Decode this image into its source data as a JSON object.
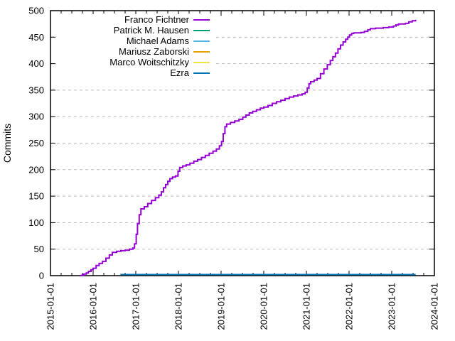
{
  "chart_data": {
    "type": "line",
    "title": "",
    "ylabel": "Commits",
    "x_axis": {
      "tick_labels": [
        "2015-01-01",
        "2016-01-01",
        "2017-01-01",
        "2018-01-01",
        "2019-01-01",
        "2020-01-01",
        "2021-01-01",
        "2022-01-01",
        "2023-01-01",
        "2024-01-01"
      ],
      "range_decimal_years": [
        2015,
        2024
      ],
      "minor_ticks_per_interval": 3,
      "tick_label_rotation_deg": 90
    },
    "y_axis": {
      "label": "Commits",
      "ticks": [
        0,
        50,
        100,
        150,
        200,
        250,
        300,
        350,
        400,
        450,
        500
      ],
      "range": [
        0,
        500
      ],
      "grid": "horizontal-dashed"
    },
    "legend_position": "top-left-inside",
    "x_unit": "decimal_year",
    "series": [
      {
        "name": "Franco Fichtner",
        "color": "#9400d3",
        "points": [
          [
            2015.7,
            0
          ],
          [
            2015.74,
            1
          ],
          [
            2015.78,
            3
          ],
          [
            2015.84,
            5
          ],
          [
            2015.89,
            8
          ],
          [
            2015.95,
            11
          ],
          [
            2016.0,
            14
          ],
          [
            2016.07,
            19
          ],
          [
            2016.14,
            23
          ],
          [
            2016.22,
            27
          ],
          [
            2016.3,
            33
          ],
          [
            2016.38,
            39
          ],
          [
            2016.45,
            44
          ],
          [
            2016.55,
            46
          ],
          [
            2016.65,
            47
          ],
          [
            2016.75,
            48
          ],
          [
            2016.85,
            50
          ],
          [
            2016.93,
            52
          ],
          [
            2016.97,
            60
          ],
          [
            2017.01,
            78
          ],
          [
            2017.04,
            98
          ],
          [
            2017.08,
            115
          ],
          [
            2017.12,
            126
          ],
          [
            2017.2,
            130
          ],
          [
            2017.28,
            136
          ],
          [
            2017.37,
            142
          ],
          [
            2017.46,
            147
          ],
          [
            2017.54,
            152
          ],
          [
            2017.6,
            158
          ],
          [
            2017.65,
            166
          ],
          [
            2017.7,
            172
          ],
          [
            2017.75,
            178
          ],
          [
            2017.8,
            183
          ],
          [
            2017.86,
            186
          ],
          [
            2017.93,
            188
          ],
          [
            2017.99,
            197
          ],
          [
            2018.03,
            204
          ],
          [
            2018.1,
            207
          ],
          [
            2018.18,
            209
          ],
          [
            2018.27,
            212
          ],
          [
            2018.36,
            216
          ],
          [
            2018.45,
            219
          ],
          [
            2018.54,
            223
          ],
          [
            2018.63,
            227
          ],
          [
            2018.72,
            231
          ],
          [
            2018.81,
            235
          ],
          [
            2018.89,
            239
          ],
          [
            2018.96,
            245
          ],
          [
            2019.01,
            253
          ],
          [
            2019.05,
            268
          ],
          [
            2019.09,
            281
          ],
          [
            2019.13,
            286
          ],
          [
            2019.22,
            289
          ],
          [
            2019.32,
            292
          ],
          [
            2019.42,
            295
          ],
          [
            2019.51,
            299
          ],
          [
            2019.58,
            303
          ],
          [
            2019.66,
            307
          ],
          [
            2019.74,
            310
          ],
          [
            2019.83,
            313
          ],
          [
            2019.92,
            316
          ],
          [
            2020.0,
            318
          ],
          [
            2020.1,
            321
          ],
          [
            2020.2,
            325
          ],
          [
            2020.3,
            328
          ],
          [
            2020.4,
            331
          ],
          [
            2020.5,
            334
          ],
          [
            2020.6,
            337
          ],
          [
            2020.7,
            339
          ],
          [
            2020.8,
            341
          ],
          [
            2020.9,
            343
          ],
          [
            2020.97,
            346
          ],
          [
            2021.02,
            354
          ],
          [
            2021.06,
            362
          ],
          [
            2021.1,
            366
          ],
          [
            2021.18,
            369
          ],
          [
            2021.25,
            372
          ],
          [
            2021.33,
            381
          ],
          [
            2021.41,
            390
          ],
          [
            2021.49,
            398
          ],
          [
            2021.56,
            406
          ],
          [
            2021.62,
            413
          ],
          [
            2021.68,
            420
          ],
          [
            2021.74,
            428
          ],
          [
            2021.8,
            435
          ],
          [
            2021.86,
            441
          ],
          [
            2021.92,
            446
          ],
          [
            2021.97,
            450
          ],
          [
            2022.01,
            454
          ],
          [
            2022.06,
            457
          ],
          [
            2022.11,
            458
          ],
          [
            2022.28,
            459
          ],
          [
            2022.36,
            461
          ],
          [
            2022.44,
            464
          ],
          [
            2022.5,
            466
          ],
          [
            2022.62,
            467
          ],
          [
            2022.8,
            468
          ],
          [
            2022.93,
            469
          ],
          [
            2023.04,
            471
          ],
          [
            2023.1,
            473
          ],
          [
            2023.16,
            475
          ],
          [
            2023.32,
            476
          ],
          [
            2023.4,
            479
          ],
          [
            2023.48,
            481
          ],
          [
            2023.56,
            483
          ]
        ]
      },
      {
        "name": "Patrick M. Hausen",
        "color": "#009e73",
        "points": [
          [
            2016.64,
            2
          ],
          [
            2023.56,
            2
          ]
        ],
        "note": "flat near zero, hidden behind Ezra line"
      },
      {
        "name": "Michael Adams",
        "color": "#56b4e9",
        "points": [
          [
            2016.64,
            2
          ],
          [
            2023.56,
            2
          ]
        ],
        "note": "flat near zero, hidden behind Ezra line"
      },
      {
        "name": "Mariusz Zaborski",
        "color": "#e69f00",
        "points": [
          [
            2016.64,
            2
          ],
          [
            2023.56,
            2
          ]
        ],
        "note": "flat near zero, hidden behind Ezra line"
      },
      {
        "name": "Marco Woitschitzky",
        "color": "#f0e442",
        "points": [
          [
            2016.64,
            2
          ],
          [
            2023.56,
            2
          ]
        ],
        "note": "flat near zero, hidden behind Ezra line"
      },
      {
        "name": "Ezra",
        "color": "#0072b2",
        "points": [
          [
            2016.64,
            2
          ],
          [
            2023.56,
            2
          ]
        ]
      }
    ],
    "style": {
      "background": "#ffffff",
      "grid_color": "#b9b9b9",
      "axis_color": "#000000",
      "line_width": 2
    }
  }
}
